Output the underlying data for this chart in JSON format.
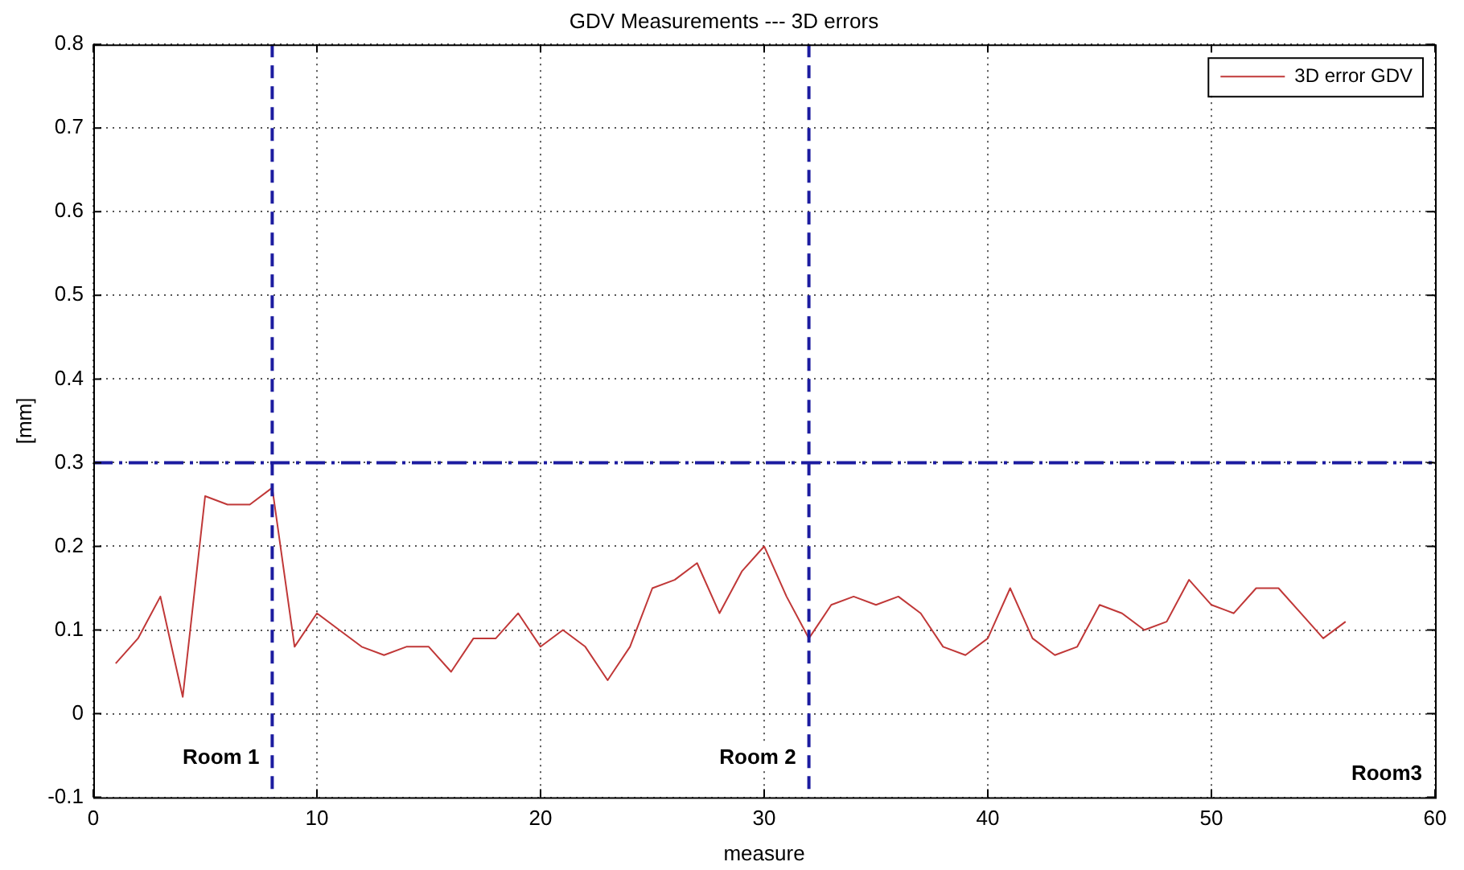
{
  "chart_data": {
    "type": "line",
    "title": "GDV Measurements --- 3D errors",
    "xlabel": "measure",
    "ylabel": "[mm]",
    "x": [
      1,
      2,
      3,
      4,
      5,
      6,
      7,
      8,
      9,
      10,
      11,
      12,
      13,
      14,
      15,
      16,
      17,
      18,
      19,
      20,
      21,
      22,
      23,
      24,
      25,
      26,
      27,
      28,
      29,
      30,
      31,
      32,
      33,
      34,
      35,
      36,
      37,
      38,
      39,
      40,
      41,
      42,
      43,
      44,
      45,
      46,
      47,
      48,
      49,
      50,
      51,
      52,
      53,
      54,
      55,
      56
    ],
    "series": [
      {
        "name": "3D error GDV",
        "color": "#c03838",
        "values": [
          0.06,
          0.09,
          0.14,
          0.02,
          0.26,
          0.25,
          0.25,
          0.27,
          0.08,
          0.12,
          0.1,
          0.08,
          0.07,
          0.08,
          0.08,
          0.05,
          0.09,
          0.09,
          0.12,
          0.08,
          0.1,
          0.08,
          0.04,
          0.08,
          0.15,
          0.16,
          0.18,
          0.12,
          0.17,
          0.2,
          0.14,
          0.09,
          0.13,
          0.14,
          0.13,
          0.14,
          0.12,
          0.08,
          0.07,
          0.09,
          0.15,
          0.09,
          0.07,
          0.08,
          0.13,
          0.12,
          0.1,
          0.11,
          0.16,
          0.13,
          0.12,
          0.15,
          0.15,
          0.12,
          0.09,
          0.11
        ]
      }
    ],
    "xlim": [
      0,
      60
    ],
    "xticks": [
      0,
      10,
      20,
      30,
      40,
      50,
      60
    ],
    "ylim": [
      -0.1,
      0.8
    ],
    "yticks": [
      -0.1,
      0,
      0.1,
      0.2,
      0.3,
      0.4,
      0.5,
      0.6,
      0.7,
      0.8
    ],
    "ref_lines": [
      {
        "axis": "x",
        "value": 8,
        "label": "Room 1",
        "color": "#1c1ca0",
        "line_style": "dashed"
      },
      {
        "axis": "x",
        "value": 32,
        "label": "Room 2",
        "color": "#1c1ca0",
        "line_style": "dashed"
      },
      {
        "axis": "y",
        "value": 0.3,
        "label": null,
        "color": "#1c1ca0",
        "line_style": "dashdot"
      }
    ],
    "annotations": [
      "Room3"
    ],
    "grid": true,
    "legend": "top right",
    "marker": "none",
    "line_style": "solid"
  }
}
